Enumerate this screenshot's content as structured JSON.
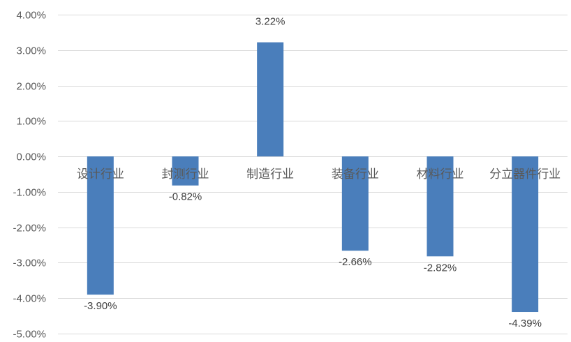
{
  "chart_data": {
    "type": "bar",
    "categories": [
      "设计行业",
      "封测行业",
      "制造行业",
      "装备行业",
      "材料行业",
      "分立器件行业"
    ],
    "values": [
      -3.9,
      -0.82,
      3.22,
      -2.66,
      -2.82,
      -4.39
    ],
    "data_labels": [
      "-3.90%",
      "-0.82%",
      "3.22%",
      "-2.66%",
      "-2.82%",
      "-4.39%"
    ],
    "y_ticks": [
      4,
      3,
      2,
      1,
      0,
      -1,
      -2,
      -3,
      -4,
      -5
    ],
    "y_tick_labels": [
      "4.00%",
      "3.00%",
      "2.00%",
      "1.00%",
      "0.00%",
      "-1.00%",
      "-2.00%",
      "-3.00%",
      "-4.00%",
      "-5.00%"
    ],
    "ylim": [
      -5,
      4
    ],
    "grid": true,
    "legend": "none",
    "bar_color": "#4a7ebb",
    "title": "",
    "xlabel": "",
    "ylabel": ""
  }
}
